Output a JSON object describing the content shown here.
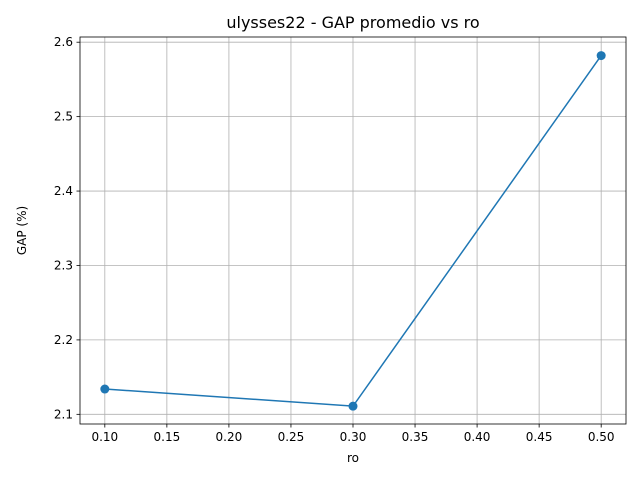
{
  "chart_data": {
    "type": "line",
    "title": "ulysses22 - GAP promedio vs ro",
    "xlabel": "ro",
    "ylabel": "GAP (%)",
    "xlim": [
      0.08,
      0.52
    ],
    "ylim": [
      2.087,
      2.607
    ],
    "grid": true,
    "x_ticks": [
      0.1,
      0.15,
      0.2,
      0.25,
      0.3,
      0.35,
      0.4,
      0.45,
      0.5
    ],
    "x_tick_labels": [
      "0.10",
      "0.15",
      "0.20",
      "0.25",
      "0.30",
      "0.35",
      "0.40",
      "0.45",
      "0.50"
    ],
    "y_ticks": [
      2.1,
      2.2,
      2.3,
      2.4,
      2.5,
      2.6
    ],
    "y_tick_labels": [
      "2.1",
      "2.2",
      "2.3",
      "2.4",
      "2.5",
      "2.6"
    ],
    "series": [
      {
        "color": "#1f77b4",
        "marker": "circle",
        "points": [
          {
            "x": 0.1,
            "y": 2.134
          },
          {
            "x": 0.3,
            "y": 2.111
          },
          {
            "x": 0.5,
            "y": 2.582
          }
        ]
      }
    ]
  }
}
